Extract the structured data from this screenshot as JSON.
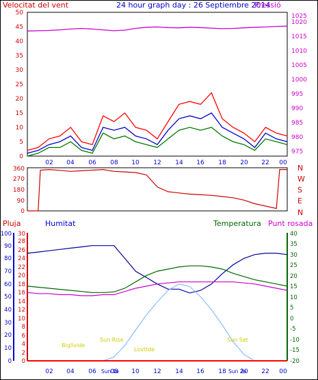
{
  "header": {
    "left_label": "Velocitat del vent",
    "title": "24 hour graph day : 26 Septiembre 2014",
    "right_label": "Pressió"
  },
  "wind_panel": {
    "y_ticks": [
      "0",
      "5",
      "10",
      "15",
      "20",
      "25",
      "30",
      "35",
      "40",
      "45",
      "50"
    ],
    "pressure_ticks": [
      "975",
      "980",
      "985",
      "990",
      "995",
      "1000",
      "1005",
      "1010",
      "1015",
      "1020",
      "1025"
    ]
  },
  "direction_panel": {
    "y_ticks": [
      "0",
      "90",
      "180",
      "270",
      "360"
    ],
    "compass": [
      "N",
      "W",
      "S",
      "E",
      "N"
    ]
  },
  "lower_panel": {
    "labels": {
      "rain": "Pluja",
      "humidity": "Humitat",
      "temperature": "Temperatura",
      "dewpoint": "Punt rosada"
    },
    "humidity_ticks": [
      "0",
      "10",
      "20",
      "30",
      "40",
      "50",
      "60",
      "70",
      "80",
      "90",
      "100"
    ],
    "rain_ticks": [
      "0",
      "2",
      "4",
      "6",
      "8",
      "10",
      "12",
      "14",
      "16",
      "18",
      "20",
      "22",
      "24",
      "26",
      "28",
      "30"
    ],
    "temp_ticks": [
      "-20",
      "-15",
      "-10",
      "-5",
      "0",
      "5",
      "10",
      "15",
      "20",
      "25",
      "30",
      "35",
      "40"
    ],
    "annotations": {
      "twilight_start": "Bigllvide",
      "sunrise": "Sun Rise",
      "twilight_end": "Lovttde",
      "sunset": "Sun Set",
      "noon_a": "Sun 1e",
      "noon_b": "Sun 2e"
    }
  },
  "x_ticks": [
    "02",
    "04",
    "06",
    "08",
    "10",
    "12",
    "14",
    "16",
    "18",
    "20",
    "22",
    "00"
  ],
  "colors": {
    "wind_speed": "#ff0000",
    "wind_avg": "#0000cc",
    "wind_other": "#007700",
    "pressure": "#cc00cc",
    "direction": "#cc0000",
    "humidity": "#000099",
    "temperature": "#006600",
    "dewpoint": "#cc00cc",
    "solar": "#88bbff",
    "rain": "#ff0000",
    "annotation": "#dddd00"
  },
  "chart_data": [
    {
      "type": "line",
      "x": [
        0,
        1,
        2,
        3,
        4,
        5,
        6,
        7,
        8,
        9,
        10,
        11,
        12,
        13,
        14,
        15,
        16,
        17,
        18,
        19,
        20,
        21,
        22,
        23,
        24
      ],
      "ylim": [
        0,
        50
      ],
      "y2lim": [
        975,
        1025
      ],
      "series": [
        {
          "name": "Velocitat del vent",
          "axis": "left",
          "values": [
            2,
            3,
            6,
            7,
            10,
            5,
            4,
            14,
            12,
            15,
            10,
            9,
            6,
            12,
            18,
            19,
            18,
            22,
            13,
            10,
            8,
            5,
            10,
            8,
            7
          ]
        },
        {
          "axis": "left",
          "values": [
            1,
            2,
            4,
            5,
            7,
            3,
            2,
            10,
            9,
            10,
            7,
            6,
            4,
            9,
            13,
            14,
            13,
            15,
            10,
            8,
            6,
            3,
            8,
            6,
            5
          ]
        },
        {
          "axis": "left",
          "values": [
            0,
            1,
            3,
            3,
            5,
            2,
            1,
            8,
            6,
            7,
            5,
            4,
            3,
            6,
            9,
            10,
            9,
            10,
            7,
            5,
            4,
            2,
            6,
            5,
            4
          ]
        },
        {
          "name": "Pressió",
          "axis": "right",
          "values": [
            1018.5,
            1018.6,
            1018.7,
            1018.9,
            1019.2,
            1019.4,
            1019.2,
            1018.9,
            1018.6,
            1018.8,
            1019.4,
            1019.8,
            1019.9,
            1019.7,
            1019.6,
            1019.8,
            1019.7,
            1019.5,
            1019.3,
            1019.4,
            1019.6,
            1019.8,
            1019.9,
            1020.1,
            1020.2
          ]
        }
      ]
    },
    {
      "type": "line",
      "x": [
        0,
        1,
        1.2,
        2,
        3,
        4,
        5,
        6,
        7,
        8,
        9,
        10,
        11,
        12,
        13,
        14,
        15,
        16,
        17,
        18,
        19,
        20,
        21,
        22,
        23,
        23.3,
        24
      ],
      "ylim": [
        0,
        360
      ],
      "series": [
        {
          "values": [
            0,
            0,
            340,
            345,
            338,
            330,
            335,
            340,
            345,
            330,
            325,
            320,
            300,
            200,
            160,
            150,
            140,
            135,
            130,
            120,
            110,
            90,
            60,
            40,
            20,
            345,
            345
          ]
        }
      ]
    },
    {
      "type": "line",
      "x": [
        0,
        1,
        2,
        3,
        4,
        5,
        6,
        7,
        8,
        9,
        10,
        11,
        12,
        13,
        14,
        15,
        16,
        17,
        18,
        19,
        20,
        21,
        22,
        23,
        24
      ],
      "ylim": [
        0,
        100
      ],
      "y2lim": [
        0,
        30
      ],
      "y3lim": [
        -20,
        40
      ],
      "series": [
        {
          "name": "Humitat",
          "axis": "humidity",
          "values": [
            84,
            85,
            86,
            87,
            88,
            89,
            90,
            90,
            90,
            80,
            70,
            65,
            60,
            56,
            56,
            53,
            55,
            60,
            68,
            75,
            80,
            83,
            84,
            84,
            83
          ]
        },
        {
          "name": "Temperatura",
          "axis": "temperature",
          "values": [
            15,
            14.5,
            14,
            13.5,
            13,
            12.5,
            12,
            12,
            12.3,
            14,
            17,
            20,
            22,
            23,
            24,
            24.5,
            24.5,
            24,
            23,
            21,
            19.5,
            18,
            17,
            16,
            15
          ]
        },
        {
          "name": "Punt rosada",
          "axis": "temperature",
          "values": [
            12,
            11.5,
            11.5,
            11,
            11,
            10.5,
            10.5,
            11,
            11,
            12.5,
            14,
            15,
            16,
            16.5,
            17,
            17,
            17,
            17,
            17,
            17,
            16.5,
            16,
            15,
            14,
            13
          ]
        },
        {
          "name": "solar",
          "axis": "humidity",
          "values": [
            0,
            0,
            0,
            0,
            0,
            0,
            0,
            0,
            3,
            12,
            24,
            36,
            46,
            55,
            60,
            58,
            50,
            40,
            28,
            15,
            5,
            0,
            0,
            0,
            0
          ]
        },
        {
          "name": "Pluja",
          "axis": "rain",
          "values": [
            0,
            0,
            0,
            0,
            0,
            0,
            0,
            0,
            0,
            0,
            0,
            0,
            0,
            0,
            0,
            0,
            0,
            0,
            0,
            0,
            0,
            0,
            0,
            0,
            0
          ]
        }
      ]
    }
  ]
}
